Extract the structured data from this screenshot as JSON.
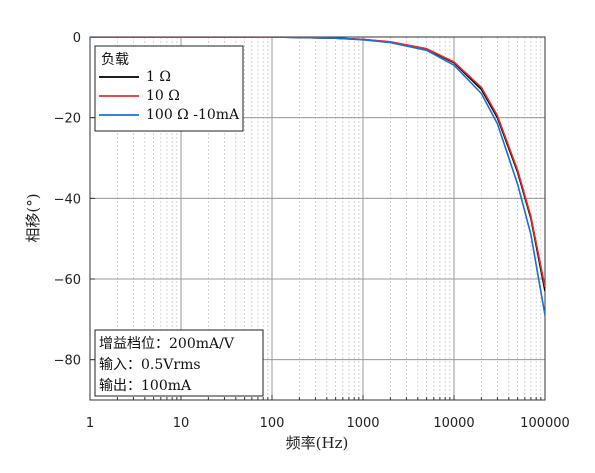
{
  "chart_data": {
    "type": "line",
    "title": "",
    "xlabel": "频率(Hz)",
    "ylabel": "相移(°)",
    "xscale": "log",
    "xlim": [
      1,
      100000
    ],
    "ylim": [
      -90,
      0
    ],
    "xticks": [
      1,
      10,
      100,
      1000,
      10000,
      100000
    ],
    "xtick_labels": [
      "1",
      "10",
      "100",
      "1000",
      "10000",
      "100000"
    ],
    "yticks": [
      0,
      -20,
      -40,
      -60,
      -80
    ],
    "ytick_labels": [
      "0",
      "−20",
      "−40",
      "−60",
      "−80"
    ],
    "grid": true,
    "legend": {
      "title": "负载",
      "placement": "top-left",
      "entries": [
        "1 Ω",
        "10 Ω",
        "100 Ω -10mA"
      ]
    },
    "series": [
      {
        "name": "1 Ω",
        "color": "#000000",
        "x": [
          1,
          100,
          500,
          1000,
          2000,
          5000,
          10000,
          20000,
          30000,
          50000,
          70000,
          100000
        ],
        "y": [
          0,
          0,
          -0.3,
          -0.6,
          -1.3,
          -3.0,
          -6.4,
          -13.0,
          -20.0,
          -33.5,
          -45.0,
          -63.0
        ]
      },
      {
        "name": "10 Ω",
        "color": "#e03030",
        "x": [
          1,
          100,
          500,
          1000,
          2000,
          5000,
          10000,
          20000,
          30000,
          50000,
          70000,
          100000
        ],
        "y": [
          0,
          0,
          -0.3,
          -0.6,
          -1.2,
          -2.9,
          -6.2,
          -12.5,
          -19.5,
          -33.0,
          -44.5,
          -62.0
        ]
      },
      {
        "name": "100 Ω -10mA",
        "color": "#1f6fd1",
        "x": [
          1,
          100,
          500,
          1000,
          2000,
          5000,
          10000,
          20000,
          30000,
          50000,
          70000,
          100000
        ],
        "y": [
          0,
          0,
          -0.3,
          -0.7,
          -1.4,
          -3.3,
          -7.0,
          -14.0,
          -21.5,
          -36.5,
          -49.0,
          -69.0
        ]
      }
    ],
    "annotation": [
      "增益档位：200mA/V",
      "输入：0.5Vrms",
      "输出：100mA"
    ]
  }
}
